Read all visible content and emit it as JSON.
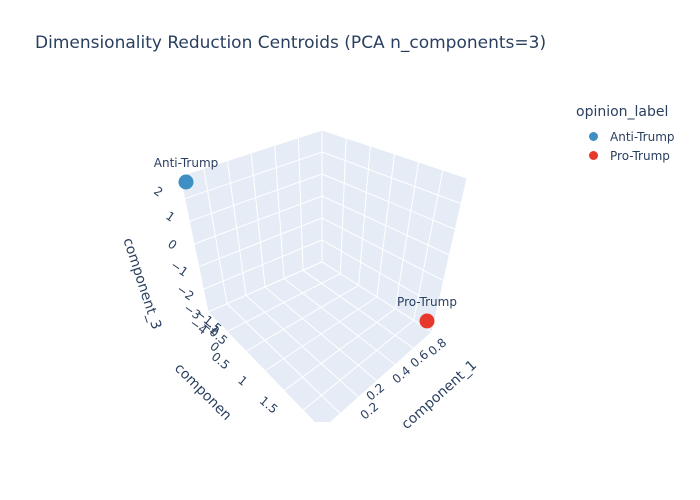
{
  "chart_data": {
    "type": "scatter3d",
    "title": "Dimensionality Reduction Centroids (PCA n_components=3)",
    "legend": {
      "title": "opinion_label",
      "placement": "top-right",
      "items": [
        {
          "name": "Anti-Trump",
          "color": "#3d8fc4"
        },
        {
          "name": "Pro-Trump",
          "color": "#e8382c"
        }
      ]
    },
    "axes": {
      "x": {
        "label": "component_1",
        "ticks": [
          "0.2",
          "0.2",
          "0.4",
          "0.6",
          "0.8"
        ]
      },
      "y": {
        "label": "componen",
        "ticks": [
          "1.5",
          "1",
          "0.5",
          "0",
          "−0.5",
          "−1",
          "−1.5"
        ]
      },
      "z": {
        "label": "component_3",
        "ticks": [
          "2",
          "1",
          "0",
          "−1",
          "−2",
          "−3",
          "−4"
        ]
      }
    },
    "series": [
      {
        "name": "Anti-Trump",
        "label": "Anti-Trump",
        "x": 0.0,
        "y": 2.0,
        "z": 2.6
      },
      {
        "name": "Pro-Trump",
        "label": "Pro-Trump",
        "x": 0.95,
        "y": -1.5,
        "z": -4.4
      }
    ]
  }
}
